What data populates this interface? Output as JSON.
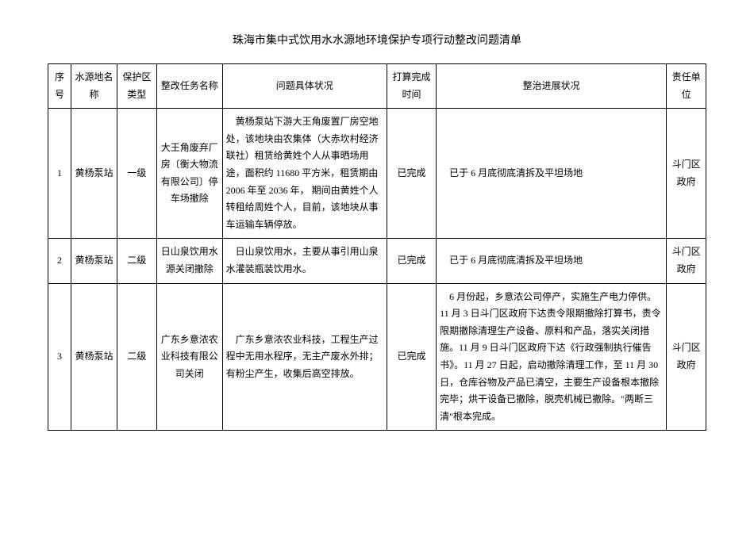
{
  "title": "珠海市集中式饮用水水源地环境保护专项行动整改问题清单",
  "headers": {
    "seq": "序号",
    "sourceName": "水源地名称",
    "zoneType": "保护区类型",
    "taskName": "整改任务名称",
    "detail": "问题具体状况",
    "completeTime": "打算完成时间",
    "progress": "整治进展状况",
    "responsible": "责任单位"
  },
  "rows": [
    {
      "seq": "1",
      "sourceName": "黄杨泵站",
      "zoneType": "一级",
      "taskName": "大王角废弃厂房〔衡大物流有限公司〕停车场撤除",
      "detail": "黄杨泵站下游大王角废置厂房空地处，该地块由农集体（大赤坎村经济联社）租赁给黄姓个人从事晒场用途，面积约 11680 平方米，租赁期由 2006 年至 2036 年，  期间由黄姓个人转租给周姓个人，目前，该地块从事车运输车辆停放。",
      "completeTime": "已完成",
      "progress": "已于 6 月底彻底清拆及平坦场地",
      "responsible": "斗门区政府"
    },
    {
      "seq": "2",
      "sourceName": "黄杨泵站",
      "zoneType": "二级",
      "taskName": "日山泉饮用水源关闭撤除",
      "detail": "日山泉饮用水，主要从事引用山泉水灌装瓶装饮用水。",
      "completeTime": "已完成",
      "progress": "已于 6 月底彻底清拆及平坦场地",
      "responsible": "斗门区政府"
    },
    {
      "seq": "3",
      "sourceName": "黄杨泵站",
      "zoneType": "二级",
      "taskName": "广东乡意浓农业科技有限公司关闭",
      "detail": "广东乡意浓农业科技，工程生产过程中无用水程序，无主产废水外排；有粉尘产生，收集后高空排放。",
      "completeTime": "已完成",
      "progress": "6 月份起，乡意浓公司停产，实施生产电力停供。11 月 3 日斗门区政府下达责令限期撤除打算书，责令限期撤除清理生产设备、原料和产品，落实关闭措施。11 月 9 日斗门区政府下达《行政强制执行催告书》。11 月 27 日起，启动撤除清理工作，至 11 月 30 日，仓库谷物及产品已清空，主要生产设备根本撤除完毕；烘干设备已撤除，脱壳机械已撤除。\"两断三清\"根本完成。",
      "responsible": "斗门区政府"
    }
  ]
}
